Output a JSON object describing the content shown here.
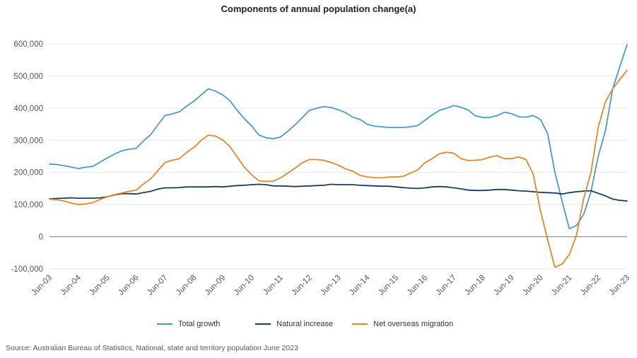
{
  "chart_data": {
    "type": "line",
    "title": "Components of annual population change(a)",
    "xlabel": "",
    "ylabel": "",
    "ylim": [
      -100000,
      600000
    ],
    "yticks": [
      600000,
      500000,
      400000,
      300000,
      200000,
      100000,
      0,
      -100000
    ],
    "ytick_labels": [
      "600,000",
      "500,000",
      "400,000",
      "300,000",
      "200,000",
      "100,000",
      "0",
      "-100,000"
    ],
    "xtick_labels": [
      "Jun-03",
      "Jun-04",
      "Jun-05",
      "Jun-06",
      "Jun-07",
      "Jun-08",
      "Jun-09",
      "Jun-10",
      "Jun-11",
      "Jun-12",
      "Jun-13",
      "Jun-14",
      "Jun-15",
      "Jun-16",
      "Jun-17",
      "Jun-18",
      "Jun-19",
      "Jun-20",
      "Jun-21",
      "Jun-22",
      "Jun-23"
    ],
    "grid": "horizontal",
    "legend_position": "bottom",
    "x": [
      "Jun-03",
      "Sep-03",
      "Dec-03",
      "Mar-04",
      "Jun-04",
      "Sep-04",
      "Dec-04",
      "Mar-05",
      "Jun-05",
      "Sep-05",
      "Dec-05",
      "Mar-06",
      "Jun-06",
      "Sep-06",
      "Dec-06",
      "Mar-07",
      "Jun-07",
      "Sep-07",
      "Dec-07",
      "Mar-08",
      "Jun-08",
      "Sep-08",
      "Dec-08",
      "Mar-09",
      "Jun-09",
      "Sep-09",
      "Dec-09",
      "Mar-10",
      "Jun-10",
      "Sep-10",
      "Dec-10",
      "Mar-11",
      "Jun-11",
      "Sep-11",
      "Dec-11",
      "Mar-12",
      "Jun-12",
      "Sep-12",
      "Dec-12",
      "Mar-13",
      "Jun-13",
      "Sep-13",
      "Dec-13",
      "Mar-14",
      "Jun-14",
      "Sep-14",
      "Dec-14",
      "Mar-15",
      "Jun-15",
      "Sep-15",
      "Dec-15",
      "Mar-16",
      "Jun-16",
      "Sep-16",
      "Dec-16",
      "Mar-17",
      "Jun-17",
      "Sep-17",
      "Dec-17",
      "Mar-18",
      "Jun-18",
      "Sep-18",
      "Dec-18",
      "Mar-19",
      "Jun-19",
      "Sep-19",
      "Dec-19",
      "Mar-20",
      "Jun-20",
      "Sep-20",
      "Dec-20",
      "Mar-21",
      "Jun-21",
      "Sep-21",
      "Dec-21",
      "Mar-22",
      "Jun-22",
      "Sep-22",
      "Dec-22",
      "Mar-23",
      "Jun-23"
    ],
    "series": [
      {
        "name": "Total growth",
        "color": "#4a9cc7",
        "values": [
          226000,
          225000,
          221000,
          217000,
          212000,
          216000,
          219000,
          232000,
          245000,
          257000,
          267000,
          272000,
          275000,
          298000,
          317000,
          348000,
          377000,
          382000,
          389000,
          406000,
          422000,
          441000,
          460000,
          453000,
          441000,
          423000,
          393000,
          367000,
          345000,
          316000,
          308000,
          305000,
          310000,
          328000,
          348000,
          370000,
          393000,
          400000,
          405000,
          402000,
          395000,
          386000,
          372000,
          365000,
          350000,
          344000,
          342000,
          340000,
          340000,
          340000,
          342000,
          346000,
          362000,
          379000,
          393000,
          400000,
          408000,
          403000,
          394000,
          376000,
          371000,
          371000,
          377000,
          387000,
          383000,
          373000,
          372000,
          377000,
          365000,
          320000,
          200000,
          110000,
          25000,
          35000,
          70000,
          140000,
          250000,
          330000,
          460000,
          530000,
          598000
        ]
      },
      {
        "name": "Natural increase",
        "color": "#1b3d5c",
        "values": [
          118000,
          119000,
          120000,
          121000,
          120000,
          120000,
          120000,
          121000,
          124000,
          130000,
          134000,
          134000,
          133000,
          137000,
          141000,
          148000,
          152000,
          152000,
          153000,
          155000,
          155000,
          155000,
          155000,
          156000,
          155000,
          157000,
          159000,
          160000,
          162000,
          163000,
          162000,
          158000,
          158000,
          157000,
          156000,
          157000,
          158000,
          159000,
          160000,
          163000,
          162000,
          162000,
          162000,
          160000,
          159000,
          158000,
          157000,
          157000,
          155000,
          153000,
          151000,
          150000,
          152000,
          155000,
          156000,
          155000,
          152000,
          149000,
          145000,
          144000,
          144000,
          145000,
          147000,
          147000,
          145000,
          143000,
          142000,
          140000,
          138000,
          137000,
          136000,
          133000,
          137000,
          140000,
          142000,
          143000,
          135000,
          127000,
          117000,
          113000,
          111000
        ]
      },
      {
        "name": "Net overseas migration",
        "color": "#e3872a",
        "values": [
          117000,
          115000,
          111000,
          105000,
          100000,
          102000,
          106000,
          116000,
          124000,
          131000,
          136000,
          141000,
          145000,
          164000,
          180000,
          205000,
          231000,
          238000,
          243000,
          262000,
          278000,
          300000,
          316000,
          313000,
          301000,
          280000,
          248000,
          216000,
          193000,
          174000,
          172000,
          173000,
          183000,
          198000,
          213000,
          230000,
          240000,
          240000,
          238000,
          231000,
          223000,
          211000,
          204000,
          191000,
          186000,
          184000,
          183000,
          186000,
          186000,
          188000,
          198000,
          208000,
          230000,
          243000,
          258000,
          263000,
          260000,
          243000,
          237000,
          238000,
          240000,
          248000,
          252000,
          243000,
          243000,
          248000,
          240000,
          195000,
          80000,
          -10000,
          -95000,
          -85000,
          -55000,
          5000,
          120000,
          200000,
          340000,
          420000,
          460000,
          490000,
          518000
        ]
      }
    ],
    "source": "Source: Australian Bureau of Statistics, National, state and territory population June 2023"
  }
}
